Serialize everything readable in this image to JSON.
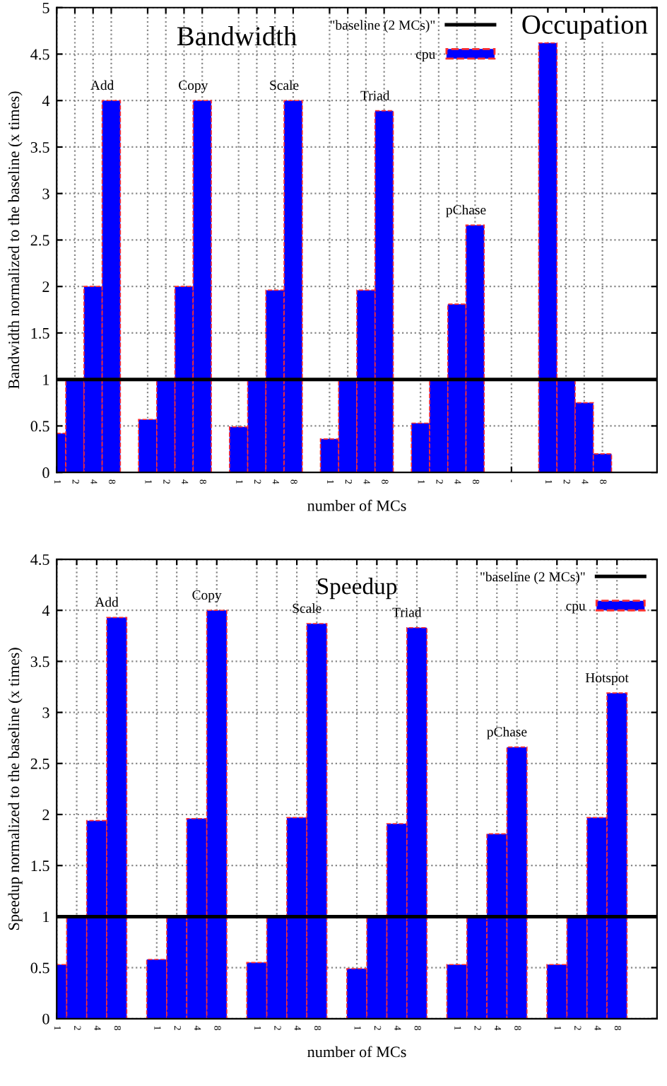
{
  "chart_data": [
    {
      "type": "bar",
      "title": "Bandwidth",
      "xlabel": "number of MCs",
      "ylabel": "Bandwidth normalized to the baseline (x times)",
      "categories": [
        "1",
        "2",
        "4",
        "8",
        null,
        "1",
        "2",
        "4",
        "8",
        null,
        "1",
        "2",
        "4",
        "8",
        null,
        "1",
        "2",
        "4",
        "8",
        null,
        "1",
        "2",
        "4",
        "8",
        null,
        "-",
        null,
        "1",
        "2",
        "4",
        "8",
        null,
        null,
        null
      ],
      "series": [
        {
          "name": "cpu",
          "color": "#0000ff",
          "values": [
            0.42,
            1,
            2,
            4,
            null,
            0.57,
            1,
            2,
            4,
            null,
            0.49,
            1,
            1.96,
            4,
            null,
            0.36,
            1,
            1.96,
            3.89,
            null,
            0.53,
            1,
            1.81,
            2.66,
            null,
            null,
            null,
            4.62,
            1,
            0.75,
            0.2,
            null,
            null,
            null
          ]
        }
      ],
      "ylim": [
        0,
        5
      ],
      "yticks": [
        0,
        0.5,
        1,
        1.5,
        2,
        2.5,
        3,
        3.5,
        4,
        4.5,
        5
      ],
      "grid": true,
      "legend": "top right",
      "ref_lines": [
        {
          "axis": "y",
          "value": 1,
          "label": "\"baseline (2 MCs)\"",
          "color": "#000000"
        }
      ],
      "annotations": [
        {
          "text": "Add",
          "y": 4
        },
        {
          "text": "Copy",
          "y": 4
        },
        {
          "text": "Scale",
          "y": 4
        },
        {
          "text": "Triad",
          "y": 3.89
        },
        {
          "text": "pChase",
          "y": 2.66
        },
        "Occupation"
      ]
    },
    {
      "type": "bar",
      "title": "Speedup",
      "xlabel": "number of MCs",
      "ylabel": "Speedup normalized to the baseline (x times)",
      "categories": [
        "1",
        "2",
        "4",
        "8",
        null,
        "1",
        "2",
        "4",
        "8",
        null,
        "1",
        "2",
        "4",
        "8",
        null,
        "1",
        "2",
        "4",
        "8",
        null,
        "1",
        "2",
        "4",
        "8",
        null,
        "1",
        "2",
        "4",
        "8",
        null,
        null
      ],
      "series": [
        {
          "name": "cpu",
          "color": "#0000ff",
          "values": [
            0.53,
            1,
            1.94,
            3.93,
            null,
            0.58,
            1,
            1.96,
            4.0,
            null,
            0.55,
            1,
            1.97,
            3.87,
            null,
            0.49,
            1,
            1.91,
            3.83,
            null,
            0.53,
            1,
            1.81,
            2.66,
            null,
            0.53,
            1,
            1.97,
            3.19,
            null,
            null
          ]
        }
      ],
      "ylim": [
        0,
        4.5
      ],
      "yticks": [
        0,
        0.5,
        1,
        1.5,
        2,
        2.5,
        3,
        3.5,
        4,
        4.5
      ],
      "grid": true,
      "legend": "top right",
      "ref_lines": [
        {
          "axis": "y",
          "value": 1,
          "label": "\"baseline (2 MCs)\"",
          "color": "#000000"
        }
      ],
      "annotations": [
        {
          "text": "Add",
          "y": 3.93
        },
        {
          "text": "Copy",
          "y": 4.0
        },
        {
          "text": "Scale",
          "y": 3.87
        },
        {
          "text": "Triad",
          "y": 3.83
        },
        {
          "text": "pChase",
          "y": 2.66
        },
        {
          "text": "Hotspot",
          "y": 3.19
        }
      ]
    }
  ]
}
